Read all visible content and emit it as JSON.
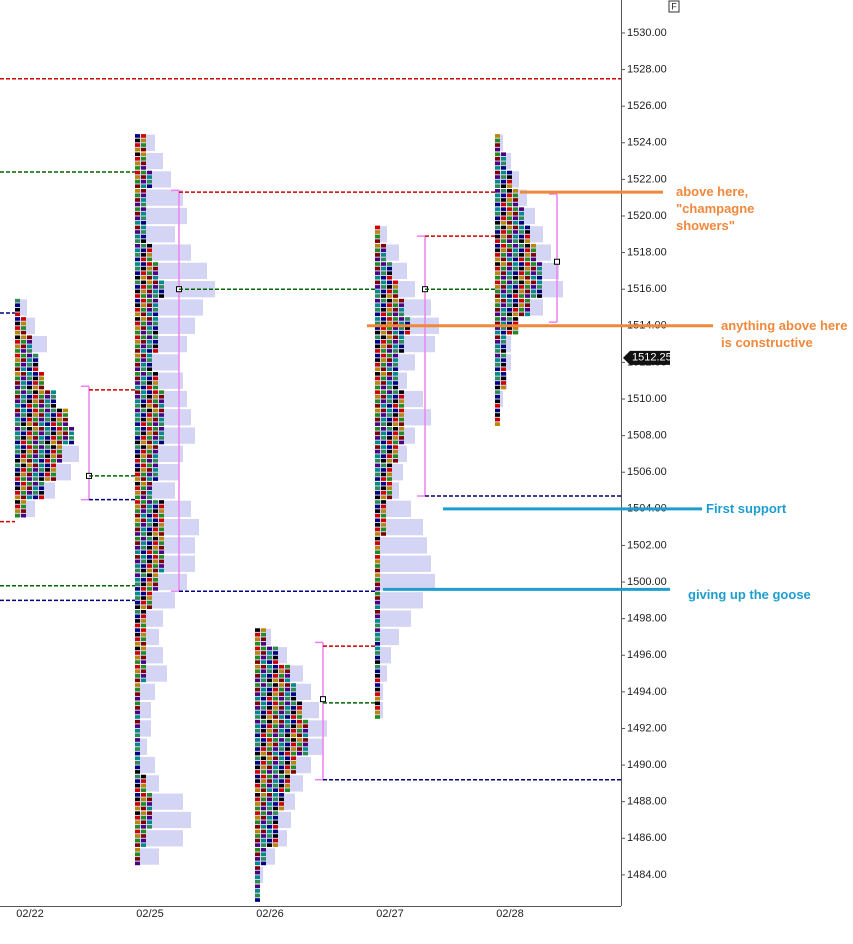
{
  "chart_data": {
    "type": "market-profile",
    "categories": [
      "02/22",
      "02/25",
      "02/26",
      "02/27",
      "02/28"
    ],
    "ylim": [
      1482.3,
      1531.8
    ],
    "yticks": [
      {
        "value": 1484,
        "label": "1484.00"
      },
      {
        "value": 1486,
        "label": "1486.00"
      },
      {
        "value": 1488,
        "label": "1488.00"
      },
      {
        "value": 1490,
        "label": "1490.00"
      },
      {
        "value": 1492,
        "label": "1492.00"
      },
      {
        "value": 1494,
        "label": "1494.00"
      },
      {
        "value": 1496,
        "label": "1496.00"
      },
      {
        "value": 1498,
        "label": "1498.00"
      },
      {
        "value": 1500,
        "label": "1500.00"
      },
      {
        "value": 1502,
        "label": "1502.00"
      },
      {
        "value": 1504,
        "label": "1504.00"
      },
      {
        "value": 1506,
        "label": "1506.00"
      },
      {
        "value": 1508,
        "label": "1508.00"
      },
      {
        "value": 1510,
        "label": "1510.00"
      },
      {
        "value": 1512,
        "label": "1512.00"
      },
      {
        "value": 1514,
        "label": "1514.00"
      },
      {
        "value": 1516,
        "label": "1516.00"
      },
      {
        "value": 1518,
        "label": "1518.00"
      },
      {
        "value": 1520,
        "label": "1520.00"
      },
      {
        "value": 1522,
        "label": "1522.00"
      },
      {
        "value": 1524,
        "label": "1524.00"
      },
      {
        "value": 1526,
        "label": "1526.00"
      },
      {
        "value": 1528,
        "label": "1528.00"
      },
      {
        "value": 1530,
        "label": "1530.00"
      }
    ],
    "tpo_colors": [
      "#2e8b57",
      "#000080",
      "#000000",
      "#cc0000",
      "#b8860b",
      "#228b22",
      "#800000",
      "#4b0082",
      "#008b8b"
    ],
    "volume_color": "#d4d4f4",
    "value_area_color": "#ee82ee",
    "profiles": [
      {
        "top": 1515,
        "tpo": [
          1,
          2,
          3,
          4,
          5,
          7,
          9,
          10,
          8,
          7,
          5,
          2
        ],
        "volume": [
          3,
          5,
          8,
          6,
          7,
          10,
          12,
          13,
          16,
          14,
          10,
          5
        ],
        "vah": 1510.7,
        "poc": 1505.8,
        "val": 1504.5
      },
      {
        "top": 1524,
        "tpo": [
          2,
          2,
          3,
          2,
          2,
          2,
          3,
          4,
          5,
          4,
          4,
          4,
          3,
          4,
          5,
          5,
          5,
          4,
          4,
          3,
          5,
          5,
          5,
          5,
          4,
          3,
          2,
          2,
          2,
          2,
          1,
          1,
          1,
          1,
          1,
          2,
          3,
          3,
          2,
          1
        ],
        "volume": [
          5,
          7,
          9,
          12,
          13,
          10,
          14,
          18,
          20,
          17,
          15,
          13,
          11,
          12,
          13,
          14,
          15,
          12,
          11,
          10,
          14,
          16,
          15,
          15,
          13,
          10,
          7,
          6,
          7,
          8,
          5,
          4,
          4,
          3,
          5,
          6,
          12,
          14,
          12,
          6
        ],
        "vah": 1521.4,
        "poc": 1516.0,
        "val": 1499.5
      },
      {
        "top": 1497,
        "tpo": [
          2,
          4,
          6,
          7,
          8,
          9,
          9,
          7,
          6,
          5,
          4,
          4,
          2,
          1,
          1
        ],
        "volume": [
          4,
          8,
          12,
          14,
          16,
          18,
          17,
          14,
          12,
          10,
          9,
          8,
          5,
          2,
          1
        ],
        "vah": 1496.7,
        "poc": 1493.6,
        "val": 1489.2
      },
      {
        "top": 1519,
        "tpo": [
          1,
          2,
          3,
          4,
          5,
          6,
          5,
          4,
          4,
          5,
          5,
          5,
          4,
          3,
          3,
          2,
          2,
          1,
          1,
          1,
          1,
          1,
          1,
          1,
          1,
          1,
          1
        ],
        "volume": [
          3,
          6,
          8,
          10,
          14,
          16,
          15,
          10,
          8,
          12,
          14,
          10,
          8,
          7,
          6,
          9,
          12,
          13,
          14,
          15,
          12,
          9,
          6,
          4,
          3,
          2,
          2
        ],
        "vah": 1518.9,
        "poc": 1516.0,
        "val": 1504.7
      },
      {
        "top": 1524,
        "tpo": [
          1,
          2,
          3,
          4,
          5,
          6,
          7,
          8,
          8,
          6,
          4,
          2,
          2,
          2,
          1,
          1
        ],
        "volume": [
          2,
          4,
          6,
          8,
          10,
          12,
          14,
          16,
          17,
          12,
          6,
          4,
          4,
          3,
          2,
          1
        ],
        "vah": 1521.2,
        "poc": 1517.5,
        "val": 1514.2
      }
    ],
    "reference_lines": [
      {
        "value": 1527.5,
        "color": "#cc0000",
        "from": null,
        "to": null
      },
      {
        "value": 1522.4,
        "color": "#006400",
        "from": null,
        "to": "02/25"
      },
      {
        "value": 1514.7,
        "color": "#000080",
        "from": null,
        "to": "02/22"
      },
      {
        "value": 1503.3,
        "color": "#cc0000",
        "from": null,
        "to": "02/22"
      },
      {
        "value": 1499.8,
        "color": "#006400",
        "from": null,
        "to": "02/25"
      },
      {
        "value": 1499.0,
        "color": "#000080",
        "from": null,
        "to": "02/25"
      },
      {
        "value": 1510.5,
        "color": "#cc0000",
        "from": "02/22",
        "to": "02/25"
      },
      {
        "value": 1505.8,
        "color": "#006400",
        "from": "02/22",
        "to": "02/25"
      },
      {
        "value": 1504.5,
        "color": "#000080",
        "from": "02/22",
        "to": "02/25"
      },
      {
        "value": 1521.3,
        "color": "#cc0000",
        "from": "02/25",
        "to": "02/28"
      },
      {
        "value": 1516.0,
        "color": "#006400",
        "from": "02/25",
        "to": "02/27"
      },
      {
        "value": 1499.5,
        "color": "#000080",
        "from": "02/25",
        "to": "02/27"
      },
      {
        "value": 1496.5,
        "color": "#cc0000",
        "from": "02/26",
        "to": "02/27"
      },
      {
        "value": 1493.4,
        "color": "#006400",
        "from": "02/26",
        "to": "02/27"
      },
      {
        "value": 1489.2,
        "color": "#000080",
        "from": "02/26",
        "to": null
      },
      {
        "value": 1518.9,
        "color": "#cc0000",
        "from": "02/27",
        "to": "02/28"
      },
      {
        "value": 1516.0,
        "color": "#006400",
        "from": "02/27",
        "to": "02/28"
      },
      {
        "value": 1504.7,
        "color": "#000080",
        "from": "02/27",
        "to": null
      }
    ],
    "annotations": [
      {
        "text": "above here, \"champagne showers\"",
        "value": 1521.3,
        "color": "#f0883c"
      },
      {
        "text": "anything above here is constructive",
        "value": 1514.0,
        "color": "#f0883c"
      },
      {
        "text": "First support",
        "value": 1504.0,
        "color": "#1e9ed0"
      },
      {
        "text": "giving up the goose",
        "value": 1499.6,
        "color": "#1e9ed0"
      }
    ],
    "last_price": 1512.25,
    "flag": "F"
  }
}
